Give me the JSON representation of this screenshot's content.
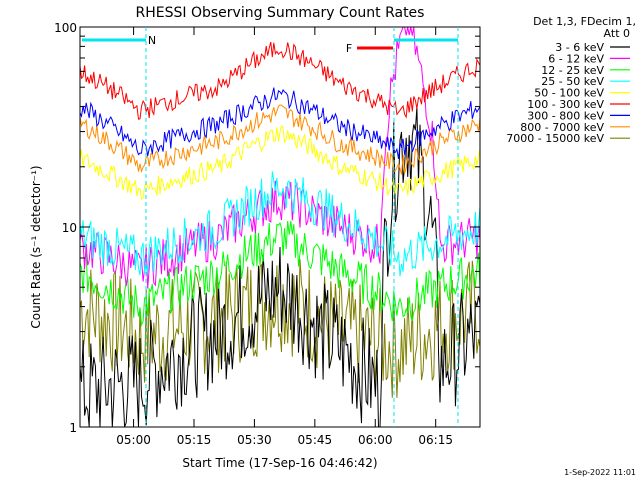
{
  "chart_data": {
    "type": "line",
    "title": "RHESSI Observing Summary Count Rates",
    "xlabel": "Start Time (17-Sep-16 04:46:42)",
    "ylabel": "Count Rate (s⁻¹ detector⁻¹)",
    "y_scale": "log",
    "ylim": [
      1,
      100
    ],
    "xlim": [
      "04:46:42",
      "06:26:00"
    ],
    "x_ticks": [
      "05:00",
      "05:15",
      "05:30",
      "05:45",
      "06:00",
      "06:15"
    ],
    "y_ticks": [
      "1",
      "10",
      "100"
    ],
    "legend_header": [
      "Det 1,3, FDecim 1,",
      "Att 0"
    ],
    "legend_position": "right",
    "grid": false,
    "annotations": {
      "night_label": "N",
      "flare_label": "F"
    },
    "footer_date": "1-Sep-2022 11:01",
    "series": [
      {
        "name": "3 - 6 keV",
        "color": "#000000",
        "values": [
          [
            0.0,
            1.5
          ],
          [
            0.15,
            1.7
          ],
          [
            0.35,
            3.0
          ],
          [
            0.5,
            5.0
          ],
          [
            0.6,
            3.0
          ],
          [
            0.75,
            1.5
          ],
          [
            0.8,
            25
          ],
          [
            0.82,
            30
          ],
          [
            0.85,
            20
          ],
          [
            0.9,
            2.0
          ],
          [
            1.0,
            3.0
          ]
        ]
      },
      {
        "name": "6 - 12 keV",
        "color": "#ff00ff",
        "values": [
          [
            0.0,
            8.0
          ],
          [
            0.15,
            6.0
          ],
          [
            0.35,
            9.0
          ],
          [
            0.5,
            14.0
          ],
          [
            0.65,
            10.0
          ],
          [
            0.75,
            8.0
          ],
          [
            0.8,
            80
          ],
          [
            0.82,
            110
          ],
          [
            0.85,
            60
          ],
          [
            0.9,
            8.0
          ],
          [
            1.0,
            9.0
          ]
        ]
      },
      {
        "name": "12 - 25 keV",
        "color": "#00ff00",
        "values": [
          [
            0.0,
            6.0
          ],
          [
            0.15,
            4.0
          ],
          [
            0.35,
            6.0
          ],
          [
            0.5,
            9.0
          ],
          [
            0.65,
            6.0
          ],
          [
            0.8,
            4.0
          ],
          [
            1.0,
            6.0
          ]
        ]
      },
      {
        "name": "25 - 50 keV",
        "color": "#00ffff",
        "values": [
          [
            0.0,
            9.0
          ],
          [
            0.15,
            7.0
          ],
          [
            0.35,
            10.0
          ],
          [
            0.5,
            16.0
          ],
          [
            0.65,
            11.0
          ],
          [
            0.8,
            7.0
          ],
          [
            1.0,
            10.0
          ]
        ]
      },
      {
        "name": "50 - 100 keV",
        "color": "#ffff00",
        "values": [
          [
            0.0,
            22
          ],
          [
            0.15,
            15
          ],
          [
            0.35,
            20
          ],
          [
            0.5,
            30
          ],
          [
            0.65,
            20
          ],
          [
            0.8,
            15
          ],
          [
            1.0,
            22
          ]
        ]
      },
      {
        "name": "100 - 300 keV",
        "color": "#ff0000",
        "values": [
          [
            0.0,
            60
          ],
          [
            0.15,
            38
          ],
          [
            0.35,
            50
          ],
          [
            0.5,
            80
          ],
          [
            0.65,
            52
          ],
          [
            0.8,
            37
          ],
          [
            1.0,
            65
          ]
        ]
      },
      {
        "name": "300 - 800 keV",
        "color": "#0000ff",
        "values": [
          [
            0.0,
            40
          ],
          [
            0.15,
            24
          ],
          [
            0.35,
            33
          ],
          [
            0.5,
            46
          ],
          [
            0.65,
            32
          ],
          [
            0.8,
            24
          ],
          [
            1.0,
            40
          ]
        ]
      },
      {
        "name": "800 - 7000 keV",
        "color": "#ff8c00",
        "values": [
          [
            0.0,
            33
          ],
          [
            0.15,
            20
          ],
          [
            0.35,
            27
          ],
          [
            0.5,
            38
          ],
          [
            0.65,
            26
          ],
          [
            0.8,
            20
          ],
          [
            1.0,
            33
          ]
        ]
      },
      {
        "name": "7000 - 15000 keV",
        "color": "#808000",
        "values": [
          [
            0.0,
            4.0
          ],
          [
            0.15,
            2.8
          ],
          [
            0.35,
            3.5
          ],
          [
            0.5,
            4.5
          ],
          [
            0.65,
            3.0
          ],
          [
            0.8,
            2.5
          ],
          [
            1.0,
            4.0
          ]
        ]
      }
    ]
  }
}
